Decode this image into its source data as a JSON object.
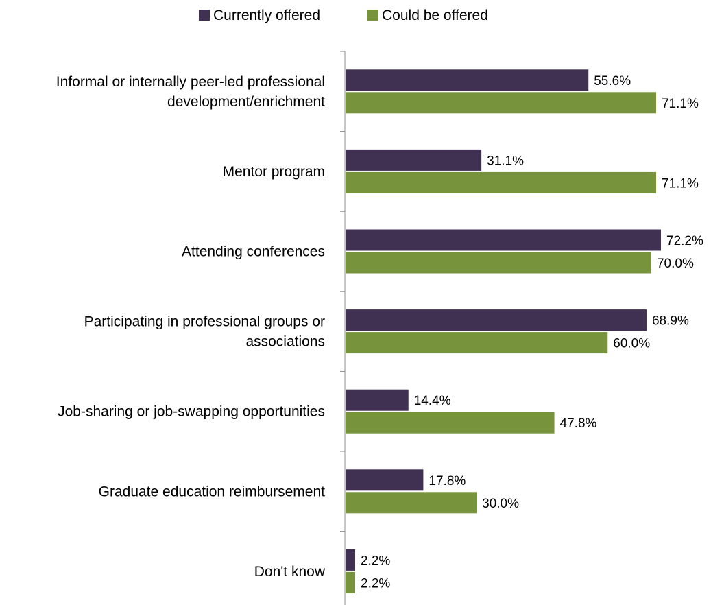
{
  "chart_data": {
    "type": "bar",
    "orientation": "horizontal",
    "categories": [
      [
        "Informal or internally peer-led professional",
        "development/enrichment"
      ],
      [
        "Mentor program"
      ],
      [
        "Attending conferences"
      ],
      [
        "Participating in professional groups or",
        "associations"
      ],
      [
        "Job-sharing or job-swapping opportunities"
      ],
      [
        "Graduate education reimbursement"
      ],
      [
        "Don't know"
      ]
    ],
    "series": [
      {
        "name": "Currently offered",
        "color": "#403152",
        "values": [
          55.6,
          31.1,
          72.2,
          68.9,
          14.4,
          17.8,
          2.2
        ],
        "labels": [
          "55.6%",
          "31.1%",
          "72.2%",
          "68.9%",
          "14.4%",
          "17.8%",
          "2.2%"
        ]
      },
      {
        "name": "Could be offered",
        "color": "#77933C",
        "values": [
          71.1,
          71.1,
          70.0,
          60.0,
          47.8,
          30.0,
          2.2
        ],
        "labels": [
          "71.1%",
          "71.1%",
          "70.0%",
          "60.0%",
          "47.8%",
          "30.0%",
          "2.2%"
        ]
      }
    ],
    "title": "",
    "xlabel": "",
    "ylabel": "",
    "xlim": [
      0,
      72.2
    ],
    "grid": false,
    "legend_position": "top"
  }
}
